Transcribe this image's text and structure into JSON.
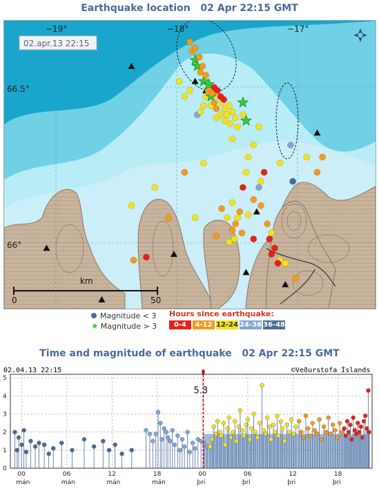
{
  "map": {
    "title": "Earthquake location",
    "title_time": "02 Apr 22:15 GMT",
    "timestamp_box": "02.apr.13  22:15",
    "lon_labels": [
      "−19°",
      "−18°",
      "−17°"
    ],
    "lat_labels": [
      "66.5°",
      "66°"
    ],
    "scale": {
      "label": "km",
      "start": "0",
      "end": "50"
    },
    "north_arrow_icon": "compass-rose-icon",
    "colors": {
      "sea_deep": "#1aa6cc",
      "sea_mid": "#6fd0e6",
      "sea_shallow": "#b8ecf6",
      "land": "#c9b49d",
      "land_contour": "#7a6a58"
    }
  },
  "legend": {
    "magnitude_small": "Magnitude < 3",
    "magnitude_large": "Magnitude > 3",
    "hours_title": "Hours since earthquake:",
    "bins": [
      {
        "label": "0-4",
        "color": "#e8201a"
      },
      {
        "label": "4-12",
        "color": "#f59a1b"
      },
      {
        "label": "12-24",
        "color": "#f3e21c"
      },
      {
        "label": "24-36",
        "color": "#7fa6d6"
      },
      {
        "label": "36-48",
        "color": "#4b6c9a"
      }
    ]
  },
  "chart": {
    "title": "Time and magnitude of earthquake",
    "title_time": "02 Apr 22:15 GMT",
    "timestamp": "02.04.13 22:15",
    "credit": "©Veðurstofa Íslands",
    "max_marker_label": "5.3",
    "y_ticks": [
      "0",
      "1",
      "2",
      "3",
      "4",
      "5"
    ],
    "x_ticks": [
      {
        "hour": "00",
        "day": "mán"
      },
      {
        "hour": "06",
        "day": "mán"
      },
      {
        "hour": "12",
        "day": "mán"
      },
      {
        "hour": "18",
        "day": "mán"
      },
      {
        "hour": "00",
        "day": "þri"
      },
      {
        "hour": "06",
        "day": "þri"
      },
      {
        "hour": "12",
        "day": "þri"
      },
      {
        "hour": "18",
        "day": "þri"
      }
    ]
  },
  "chart_data": {
    "type": "scatter",
    "title": "Time and magnitude of earthquake",
    "xlabel": "",
    "ylabel": "",
    "xlim": [
      -1.5,
      46.5
    ],
    "ylim": [
      0,
      5.2
    ],
    "x_unit": "hours since 01.04.13 00:00",
    "series": [
      {
        "name": "36-48",
        "color": "#4b6c9a",
        "points": [
          [
            -0.9,
            2.0
          ],
          [
            -0.6,
            1.0
          ],
          [
            -0.4,
            1.7
          ],
          [
            0.0,
            1.3
          ],
          [
            0.3,
            2.1
          ],
          [
            0.6,
            0.9
          ],
          [
            1.2,
            1.5
          ],
          [
            1.8,
            1.2
          ],
          [
            2.3,
            1.4
          ],
          [
            3.0,
            1.3
          ],
          [
            3.6,
            0.8
          ],
          [
            4.2,
            1.1
          ],
          [
            5.3,
            1.4
          ],
          [
            6.7,
            1.0
          ],
          [
            8.3,
            1.6
          ],
          [
            9.6,
            1.2
          ],
          [
            10.8,
            1.5
          ],
          [
            11.6,
            1.0
          ],
          [
            12.4,
            1.3
          ],
          [
            13.3,
            0.8
          ],
          [
            14.6,
            1.0
          ]
        ]
      },
      {
        "name": "24-36",
        "color": "#7fa6d6",
        "points": [
          [
            16.5,
            2.1
          ],
          [
            17.0,
            1.9
          ],
          [
            17.4,
            1.5
          ],
          [
            17.8,
            1.9
          ],
          [
            18.1,
            3.1
          ],
          [
            18.4,
            2.5
          ],
          [
            18.6,
            1.6
          ],
          [
            18.9,
            2.2
          ],
          [
            19.2,
            2.0
          ],
          [
            19.4,
            1.7
          ],
          [
            19.7,
            1.5
          ],
          [
            20.0,
            2.1
          ],
          [
            20.3,
            1.3
          ],
          [
            20.7,
            1.8
          ],
          [
            21.0,
            1.0
          ],
          [
            21.3,
            1.6
          ],
          [
            21.6,
            1.2
          ],
          [
            22.0,
            2.0
          ],
          [
            22.3,
            0.9
          ],
          [
            22.7,
            1.4
          ],
          [
            23.0,
            1.1
          ],
          [
            23.4,
            1.6
          ],
          [
            23.8,
            1.5
          ],
          [
            24.2,
            1.4
          ],
          [
            24.6,
            1.2
          ]
        ]
      },
      {
        "name": "12-24",
        "color": "#f3e21c",
        "points": [
          [
            25.0,
            1.2
          ],
          [
            25.3,
            1.6
          ],
          [
            25.5,
            2.3
          ],
          [
            25.8,
            1.9
          ],
          [
            26.0,
            2.6
          ],
          [
            26.3,
            2.0
          ],
          [
            26.5,
            1.8
          ],
          [
            26.8,
            2.5
          ],
          [
            27.0,
            1.3
          ],
          [
            27.3,
            2.2
          ],
          [
            27.5,
            2.8
          ],
          [
            27.8,
            1.7
          ],
          [
            28.0,
            2.0
          ],
          [
            28.3,
            2.6
          ],
          [
            28.5,
            1.5
          ],
          [
            28.8,
            2.3
          ],
          [
            29.0,
            3.2
          ],
          [
            29.3,
            2.1
          ],
          [
            29.5,
            1.8
          ],
          [
            29.8,
            2.4
          ],
          [
            30.0,
            2.7
          ],
          [
            30.3,
            1.6
          ],
          [
            30.5,
            2.2
          ],
          [
            30.8,
            3.0
          ],
          [
            31.0,
            2.0
          ],
          [
            31.3,
            1.7
          ],
          [
            31.6,
            2.5
          ],
          [
            31.9,
            4.6
          ],
          [
            32.1,
            2.1
          ],
          [
            32.4,
            1.9
          ],
          [
            32.6,
            2.8
          ],
          [
            32.9,
            2.3
          ],
          [
            33.1,
            1.6
          ],
          [
            33.4,
            2.4
          ],
          [
            33.6,
            2.0
          ],
          [
            33.9,
            2.9
          ],
          [
            34.1,
            1.8
          ],
          [
            34.4,
            2.6
          ],
          [
            34.6,
            2.2
          ],
          [
            34.9,
            1.5
          ],
          [
            35.2,
            2.4
          ],
          [
            35.5,
            2.0
          ],
          [
            35.8,
            2.7
          ],
          [
            36.1,
            1.9
          ],
          [
            36.4,
            2.3
          ]
        ]
      },
      {
        "name": "4-12",
        "color": "#f59a1b",
        "points": [
          [
            36.8,
            2.6
          ],
          [
            37.1,
            2.0
          ],
          [
            37.4,
            1.7
          ],
          [
            37.7,
            2.9
          ],
          [
            38.0,
            2.2
          ],
          [
            38.3,
            1.8
          ],
          [
            38.6,
            2.5
          ],
          [
            38.9,
            2.1
          ],
          [
            39.2,
            1.9
          ],
          [
            39.5,
            2.7
          ],
          [
            39.8,
            1.6
          ],
          [
            40.1,
            2.3
          ],
          [
            40.4,
            2.0
          ],
          [
            40.7,
            2.8
          ],
          [
            41.0,
            1.9
          ],
          [
            41.3,
            2.4
          ],
          [
            41.6,
            2.1
          ],
          [
            41.9,
            1.7
          ],
          [
            42.2,
            2.5
          ],
          [
            42.5,
            2.0
          ]
        ]
      },
      {
        "name": "0-4",
        "color": "#e8201a",
        "points": [
          [
            42.8,
            2.2
          ],
          [
            43.0,
            1.8
          ],
          [
            43.2,
            2.6
          ],
          [
            43.4,
            2.0
          ],
          [
            43.6,
            2.4
          ],
          [
            43.8,
            1.6
          ],
          [
            44.0,
            2.8
          ],
          [
            44.2,
            2.1
          ],
          [
            44.4,
            1.9
          ],
          [
            44.6,
            2.5
          ],
          [
            44.8,
            2.0
          ],
          [
            45.0,
            2.3
          ],
          [
            45.2,
            1.7
          ],
          [
            45.4,
            2.6
          ],
          [
            45.6,
            2.9
          ],
          [
            45.8,
            2.2
          ],
          [
            46.0,
            4.3
          ],
          [
            46.1,
            2.0
          ]
        ]
      }
    ],
    "max_marker": {
      "x": 24.1,
      "y": 5.3
    }
  },
  "map_data": {
    "lon_range": [
      -19.7,
      -16.2
    ],
    "lat_range": [
      65.8,
      66.75
    ],
    "stations": [
      [
        -18.5,
        66.6
      ],
      [
        -17.9,
        66.55
      ],
      [
        -17.8,
        66.52
      ],
      [
        -16.75,
        66.38
      ],
      [
        -19.3,
        66.0
      ],
      [
        -18.1,
        65.98
      ],
      [
        -17.32,
        66.12
      ],
      [
        -17.42,
        65.92
      ],
      [
        -18.78,
        65.83
      ],
      [
        -17.05,
        65.88
      ],
      [
        -16.52,
        65.72
      ]
    ],
    "lake_outline_icon": "dashed-aftershock-zone-icon",
    "quakes": [
      [
        -17.95,
        66.68,
        1,
        0
      ],
      [
        -17.93,
        66.65,
        1,
        0
      ],
      [
        -17.9,
        66.62,
        1,
        1
      ],
      [
        -17.88,
        66.6,
        1,
        1
      ],
      [
        -17.85,
        66.58,
        1,
        0
      ],
      [
        -17.82,
        66.55,
        1,
        1
      ],
      [
        -17.78,
        66.52,
        1,
        0
      ],
      [
        -17.75,
        66.5,
        1,
        1
      ],
      [
        -17.72,
        66.48,
        1,
        0
      ],
      [
        -17.7,
        66.46,
        1,
        0
      ],
      [
        -17.9,
        66.66,
        1,
        0
      ],
      [
        -17.86,
        66.63,
        1,
        0
      ],
      [
        -17.83,
        66.6,
        1,
        0
      ],
      [
        -17.8,
        66.57,
        1,
        0
      ],
      [
        -17.77,
        66.54,
        1,
        1
      ],
      [
        -17.74,
        66.51,
        1,
        0
      ],
      [
        -17.68,
        66.5,
        2,
        0
      ],
      [
        -17.65,
        66.48,
        2,
        0
      ],
      [
        -17.62,
        66.46,
        2,
        0
      ],
      [
        -17.6,
        66.44,
        2,
        0
      ],
      [
        -17.66,
        66.44,
        2,
        0
      ],
      [
        -17.7,
        66.43,
        2,
        0
      ],
      [
        -17.58,
        66.47,
        2,
        0
      ],
      [
        -17.55,
        66.45,
        2,
        0
      ],
      [
        -17.62,
        66.42,
        2,
        0
      ],
      [
        -17.57,
        66.41,
        2,
        0
      ],
      [
        -17.52,
        66.43,
        2,
        0
      ],
      [
        -17.5,
        66.4,
        2,
        0
      ],
      [
        -17.75,
        66.47,
        2,
        0
      ],
      [
        -17.8,
        66.5,
        2,
        0
      ],
      [
        -17.69,
        66.52,
        0,
        0
      ],
      [
        -17.66,
        66.5,
        0,
        0
      ],
      [
        -17.63,
        66.49,
        0,
        0
      ],
      [
        -17.72,
        66.53,
        0,
        0
      ],
      [
        -17.45,
        66.48,
        1,
        1
      ],
      [
        -17.42,
        66.42,
        1,
        1
      ],
      [
        -17.45,
        66.44,
        2,
        0
      ],
      [
        -17.82,
        66.47,
        2,
        0
      ],
      [
        -17.85,
        66.45,
        2,
        0
      ],
      [
        -17.95,
        66.52,
        2,
        0
      ],
      [
        -18.05,
        66.55,
        2,
        0
      ],
      [
        -18.0,
        66.5,
        2,
        0
      ],
      [
        -17.88,
        66.44,
        3,
        0
      ],
      [
        -17.55,
        66.36,
        2,
        0
      ],
      [
        -17.4,
        66.3,
        2,
        0
      ],
      [
        -17.35,
        66.34,
        2,
        0
      ],
      [
        -17.42,
        66.25,
        2,
        0
      ],
      [
        -17.3,
        66.4,
        2,
        0
      ],
      [
        -17.3,
        66.2,
        3,
        0
      ],
      [
        -17.45,
        66.2,
        0,
        0
      ],
      [
        -17.0,
        66.34,
        3,
        0
      ],
      [
        -17.1,
        66.28,
        2,
        0
      ],
      [
        -17.25,
        66.25,
        0,
        0
      ],
      [
        -17.28,
        66.22,
        2,
        0
      ],
      [
        -16.75,
        66.25,
        1,
        0
      ],
      [
        -16.7,
        66.3,
        1,
        0
      ],
      [
        -16.85,
        66.3,
        2,
        0
      ],
      [
        -16.98,
        66.22,
        4,
        0
      ],
      [
        -17.48,
        66.12,
        1,
        0
      ],
      [
        -17.52,
        66.08,
        1,
        0
      ],
      [
        -17.5,
        66.1,
        2,
        0
      ],
      [
        -17.46,
        66.05,
        1,
        0
      ],
      [
        -17.55,
        66.06,
        1,
        0
      ],
      [
        -17.53,
        66.03,
        2,
        0
      ],
      [
        -17.4,
        66.11,
        2,
        0
      ],
      [
        -17.35,
        66.16,
        1,
        0
      ],
      [
        -17.28,
        66.14,
        1,
        0
      ],
      [
        -17.22,
        66.08,
        1,
        0
      ],
      [
        -17.2,
        66.03,
        0,
        0
      ],
      [
        -17.18,
        65.98,
        0,
        0
      ],
      [
        -17.15,
        66.0,
        0,
        0
      ],
      [
        -17.12,
        65.95,
        0,
        0
      ],
      [
        -17.18,
        66.05,
        2,
        0
      ],
      [
        -17.35,
        66.03,
        0,
        0
      ],
      [
        -17.1,
        65.96,
        2,
        0
      ],
      [
        -18.5,
        66.14,
        2,
        0
      ],
      [
        -18.15,
        66.1,
        1,
        0
      ],
      [
        -17.58,
        66.02,
        2,
        0
      ],
      [
        -17.9,
        66.1,
        2,
        0
      ],
      [
        -18.36,
        65.97,
        0,
        0
      ],
      [
        -17.6,
        66.1,
        2,
        0
      ],
      [
        -16.95,
        65.9,
        1,
        0
      ],
      [
        -17.05,
        65.95,
        2,
        0
      ],
      [
        -16.92,
        65.75,
        2,
        0
      ],
      [
        -18.48,
        65.96,
        1,
        0
      ],
      [
        -17.65,
        66.13,
        1,
        0
      ],
      [
        -18.28,
        66.2,
        2,
        0
      ],
      [
        -17.55,
        66.15,
        2,
        0
      ],
      [
        -17.7,
        66.04,
        1,
        0
      ],
      [
        -17.82,
        66.28,
        2,
        0
      ],
      [
        -18.0,
        66.25,
        1,
        0
      ]
    ]
  }
}
